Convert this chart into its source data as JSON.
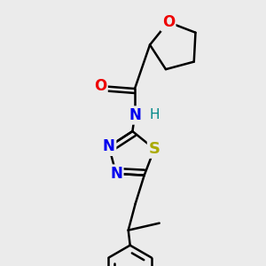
{
  "background_color": "#ebebeb",
  "bond_color": "#000000",
  "bond_width": 1.8,
  "figsize": [
    3.0,
    3.0
  ],
  "dpi": 100,
  "xlim": [
    0,
    300
  ],
  "ylim": [
    0,
    300
  ]
}
